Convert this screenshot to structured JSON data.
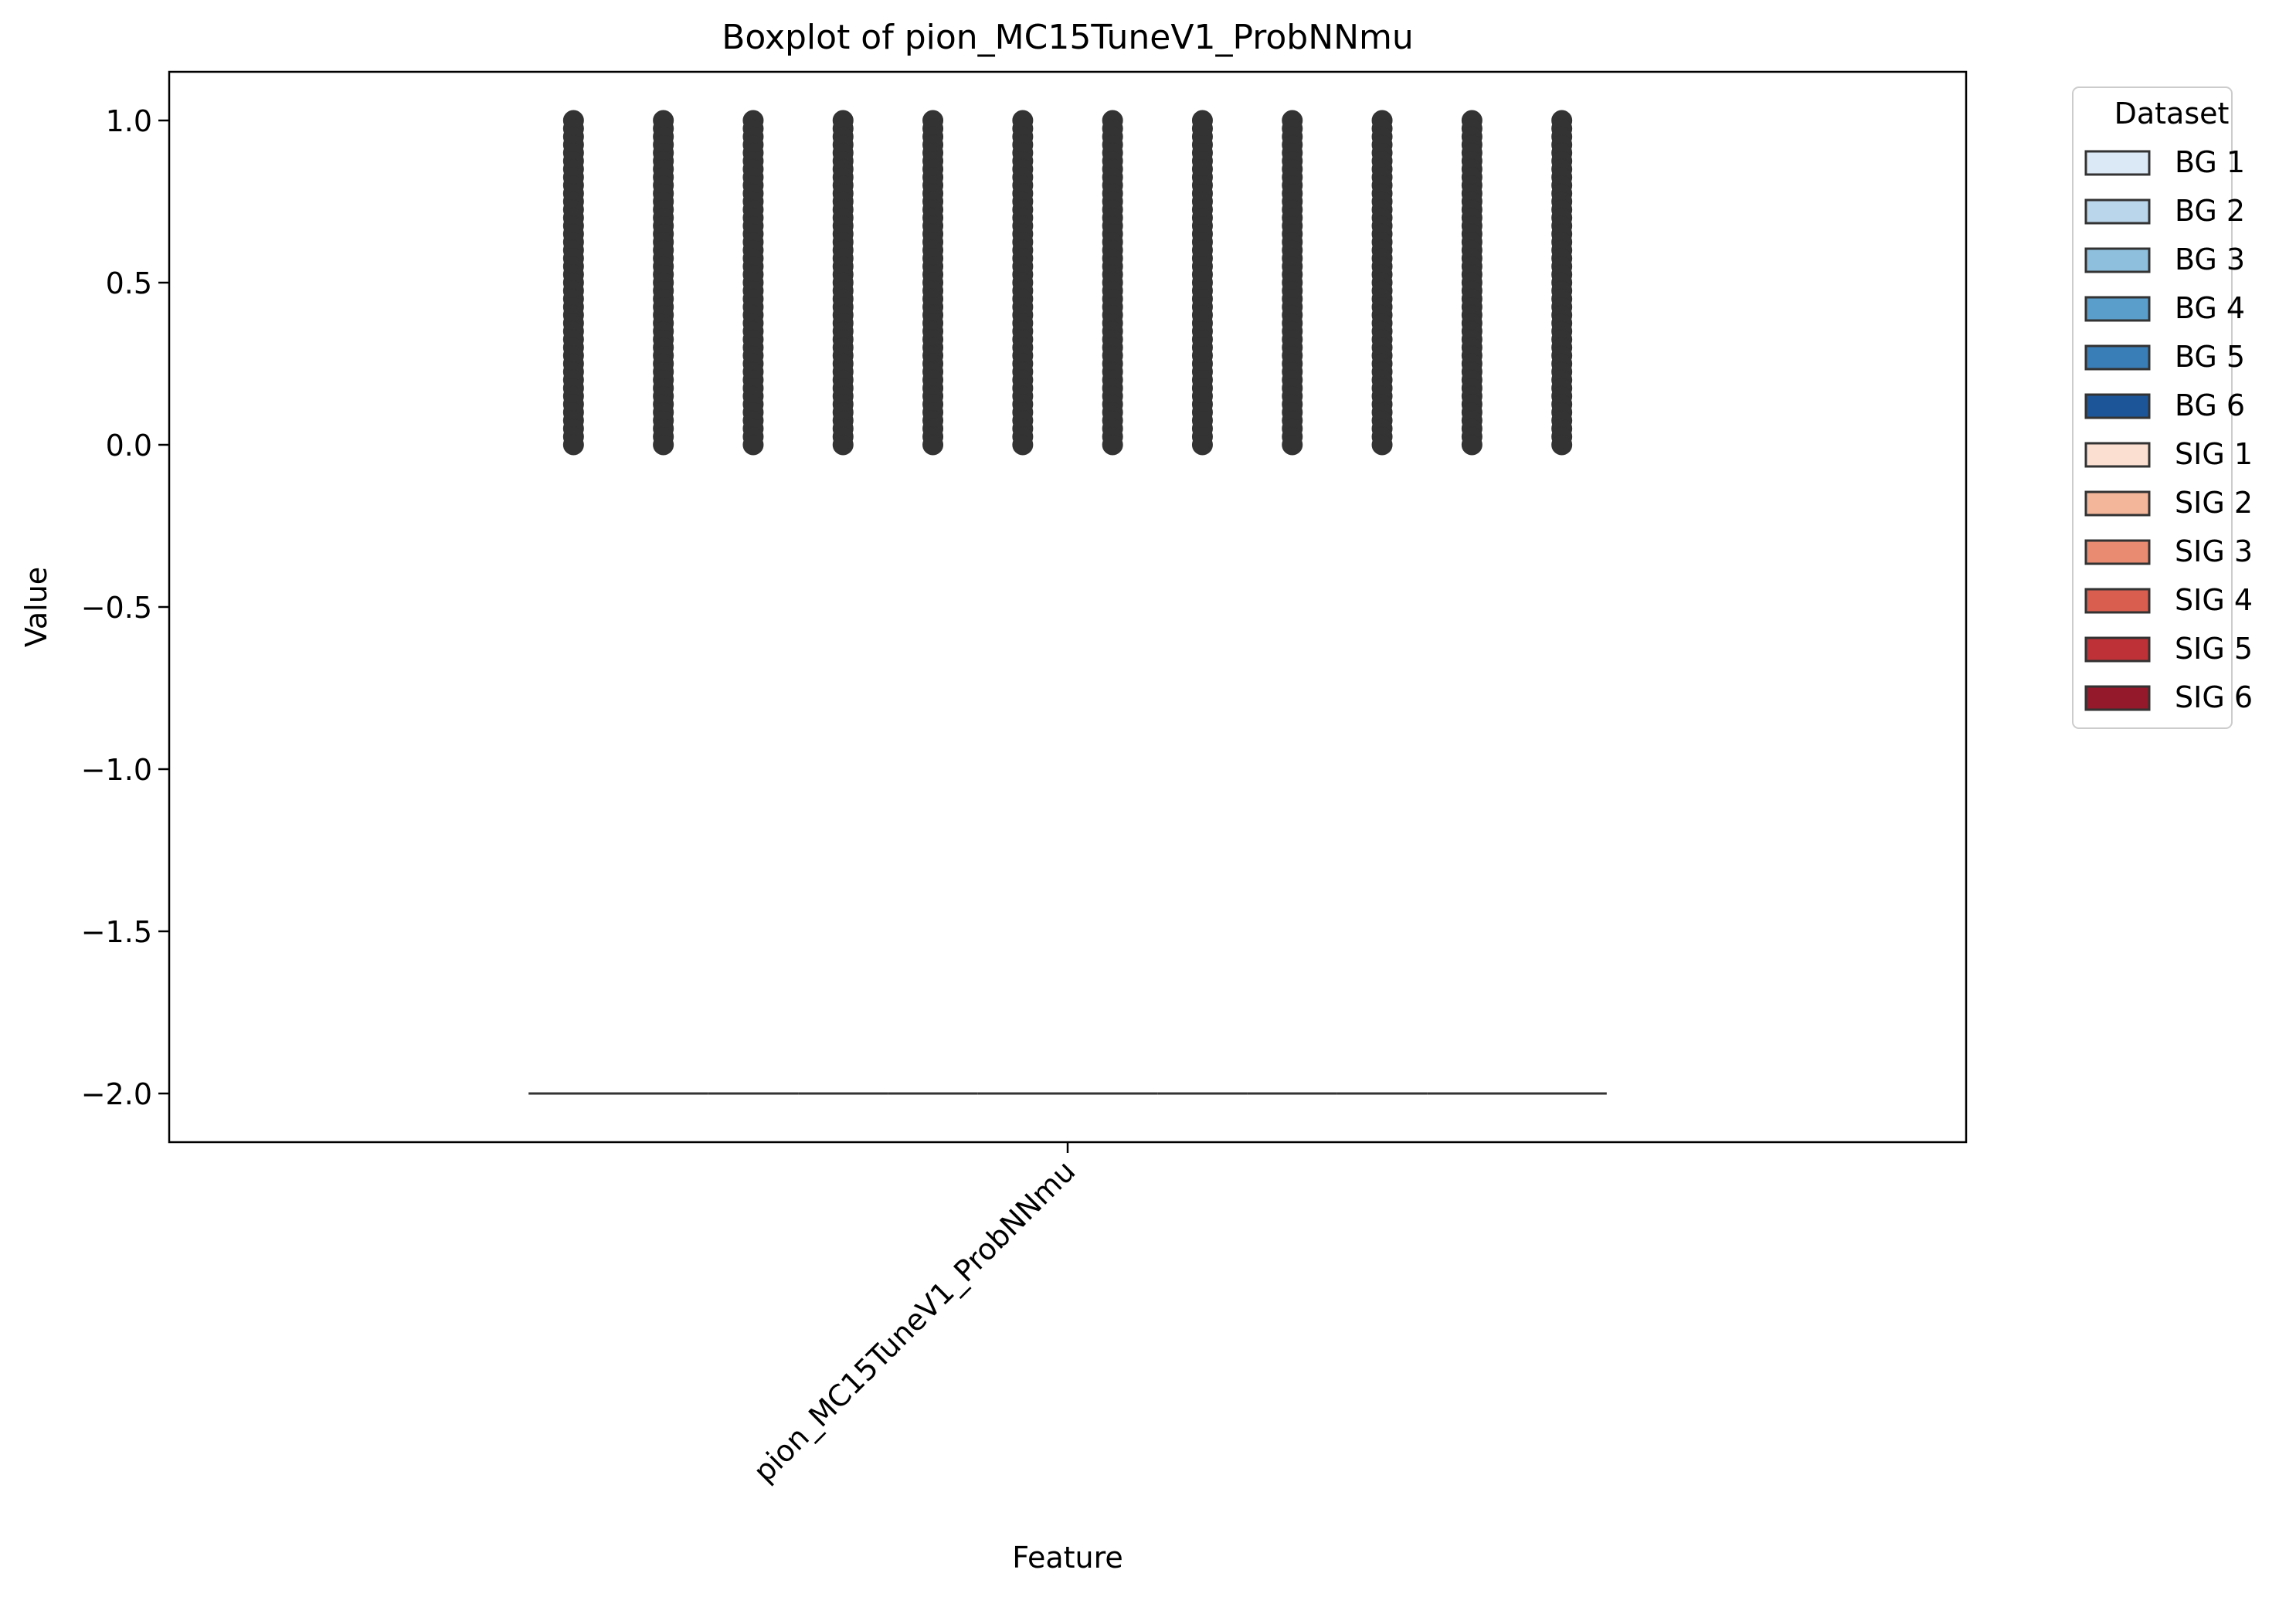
{
  "chart_data": {
    "type": "box",
    "title": "Boxplot of pion_MC15TuneV1_ProbNNmu",
    "xlabel": "Feature",
    "ylabel": "Value",
    "categories": [
      "pion_MC15TuneV1_ProbNNmu"
    ],
    "ylim": [
      -2.15,
      1.15
    ],
    "yticks": [
      1.0,
      0.5,
      0.0,
      -0.5,
      -1.0,
      -1.5,
      -2.0
    ],
    "ytick_labels": [
      "1.0",
      "0.5",
      "0.0",
      "−0.5",
      "−1.0",
      "−1.5",
      "−2.0"
    ],
    "grid": false,
    "legend": {
      "title": "Dataset",
      "placement": "outside-top-right"
    },
    "series": [
      {
        "name": "BG 1",
        "color": "#dbe9f6",
        "box": {
          "min": -2.0,
          "q1": -2.0,
          "median": -2.0,
          "q3": -2.0,
          "max": -2.0
        },
        "outliers_range": [
          0.0,
          1.0
        ]
      },
      {
        "name": "BG 2",
        "color": "#bad6eb",
        "box": {
          "min": -2.0,
          "q1": -2.0,
          "median": -2.0,
          "q3": -2.0,
          "max": -2.0
        },
        "outliers_range": [
          0.0,
          1.0
        ]
      },
      {
        "name": "BG 3",
        "color": "#8ebfdd",
        "box": {
          "min": -2.0,
          "q1": -2.0,
          "median": -2.0,
          "q3": -2.0,
          "max": -2.0
        },
        "outliers_range": [
          0.0,
          1.0
        ]
      },
      {
        "name": "BG 4",
        "color": "#5a9fcc",
        "box": {
          "min": -2.0,
          "q1": -2.0,
          "median": -2.0,
          "q3": -2.0,
          "max": -2.0
        },
        "outliers_range": [
          0.0,
          1.0
        ]
      },
      {
        "name": "BG 5",
        "color": "#3a7eb8",
        "box": {
          "min": -2.0,
          "q1": -2.0,
          "median": -2.0,
          "q3": -2.0,
          "max": -2.0
        },
        "outliers_range": [
          0.0,
          1.0
        ]
      },
      {
        "name": "BG 6",
        "color": "#1d5698",
        "box": {
          "min": -2.0,
          "q1": -2.0,
          "median": -2.0,
          "q3": -2.0,
          "max": -2.0
        },
        "outliers_range": [
          0.0,
          1.0
        ]
      },
      {
        "name": "SIG 1",
        "color": "#fbdfd1",
        "box": {
          "min": -2.0,
          "q1": -2.0,
          "median": -2.0,
          "q3": -2.0,
          "max": -2.0
        },
        "outliers_range": [
          0.0,
          1.0
        ]
      },
      {
        "name": "SIG 2",
        "color": "#f4b69b",
        "box": {
          "min": -2.0,
          "q1": -2.0,
          "median": -2.0,
          "q3": -2.0,
          "max": -2.0
        },
        "outliers_range": [
          0.0,
          1.0
        ]
      },
      {
        "name": "SIG 3",
        "color": "#e98b71",
        "box": {
          "min": -2.0,
          "q1": -2.0,
          "median": -2.0,
          "q3": -2.0,
          "max": -2.0
        },
        "outliers_range": [
          0.0,
          1.0
        ]
      },
      {
        "name": "SIG 4",
        "color": "#d95e4f",
        "box": {
          "min": -2.0,
          "q1": -2.0,
          "median": -2.0,
          "q3": -2.0,
          "max": -2.0
        },
        "outliers_range": [
          0.0,
          1.0
        ]
      },
      {
        "name": "SIG 5",
        "color": "#bd3137",
        "box": {
          "min": -2.0,
          "q1": -2.0,
          "median": -2.0,
          "q3": -2.0,
          "max": -2.0
        },
        "outliers_range": [
          0.0,
          1.0
        ]
      },
      {
        "name": "SIG 6",
        "color": "#93192b",
        "box": {
          "min": -2.0,
          "q1": -2.0,
          "median": -2.0,
          "q3": -2.0,
          "max": -2.0
        },
        "outliers_range": [
          0.0,
          1.0
        ]
      }
    ],
    "colors": {
      "outlier": "#333333",
      "box_edge": "#333333",
      "axis": "#000000"
    }
  }
}
